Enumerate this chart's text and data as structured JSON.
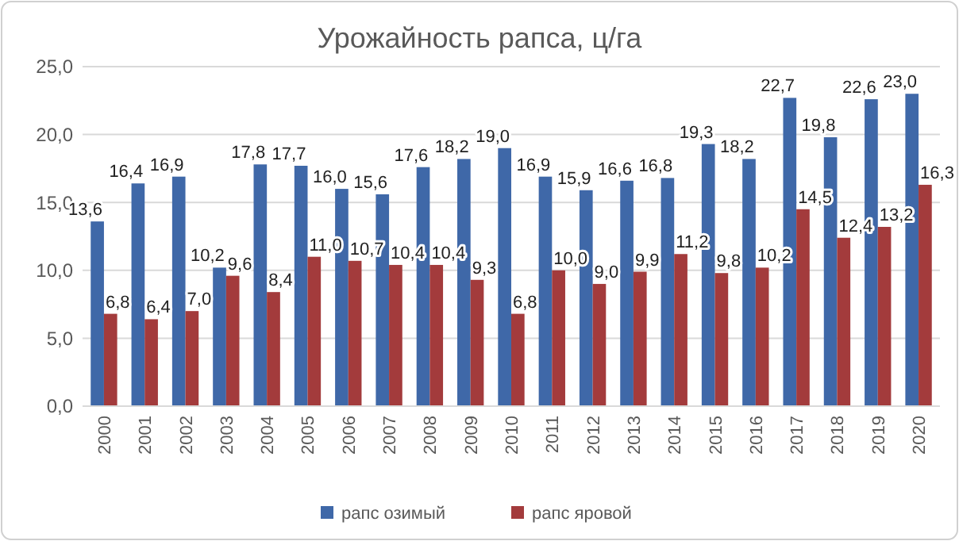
{
  "chart_data": {
    "type": "bar",
    "title": "Урожайность рапса, ц/га",
    "categories": [
      "2000",
      "2001",
      "2002",
      "2003",
      "2004",
      "2005",
      "2006",
      "2007",
      "2008",
      "2009",
      "2010",
      "2011",
      "2012",
      "2013",
      "2014",
      "2015",
      "2016",
      "2017",
      "2018",
      "2019",
      "2020"
    ],
    "series": [
      {
        "name": "рапс озимый",
        "color": "#3f68a8",
        "values": [
          13.6,
          16.4,
          16.9,
          10.2,
          17.8,
          17.7,
          16.0,
          15.6,
          17.6,
          18.2,
          19.0,
          16.9,
          15.9,
          16.6,
          16.8,
          19.3,
          18.2,
          22.7,
          19.8,
          22.6,
          23.0
        ],
        "value_labels": [
          "13,6",
          "16,4",
          "16,9",
          "10,2",
          "17,8",
          "17,7",
          "16,0",
          "15,6",
          "17,6",
          "18,2",
          "19,0",
          "16,9",
          "15,9",
          "16,6",
          "16,8",
          "19,3",
          "18,2",
          "22,7",
          "19,8",
          "22,6",
          "23,0"
        ]
      },
      {
        "name": "рапс яровой",
        "color": "#a33b3c",
        "values": [
          6.8,
          6.4,
          7.0,
          9.6,
          8.4,
          11.0,
          10.7,
          10.4,
          10.4,
          9.3,
          6.8,
          10.0,
          9.0,
          9.9,
          11.2,
          9.8,
          10.2,
          14.5,
          12.4,
          13.2,
          16.3
        ],
        "value_labels": [
          "6,8",
          "6,4",
          "7,0",
          "9,6",
          "8,4",
          "11,0",
          "10,7",
          "10,4",
          "10,4",
          "9,3",
          "6,8",
          "10,0",
          "9,0",
          "9,9",
          "11,2",
          "9,8",
          "10,2",
          "14,5",
          "12,4",
          "13,2",
          "16,3"
        ]
      }
    ],
    "ylim": [
      0,
      25
    ],
    "yticks": [
      {
        "value": 0,
        "label": "0,0"
      },
      {
        "value": 5,
        "label": "5,0"
      },
      {
        "value": 10,
        "label": "10,0"
      },
      {
        "value": 15,
        "label": "15,0"
      },
      {
        "value": 20,
        "label": "20,0"
      },
      {
        "value": 25,
        "label": "25,0"
      }
    ],
    "grid": "y",
    "legend": "bottom"
  }
}
